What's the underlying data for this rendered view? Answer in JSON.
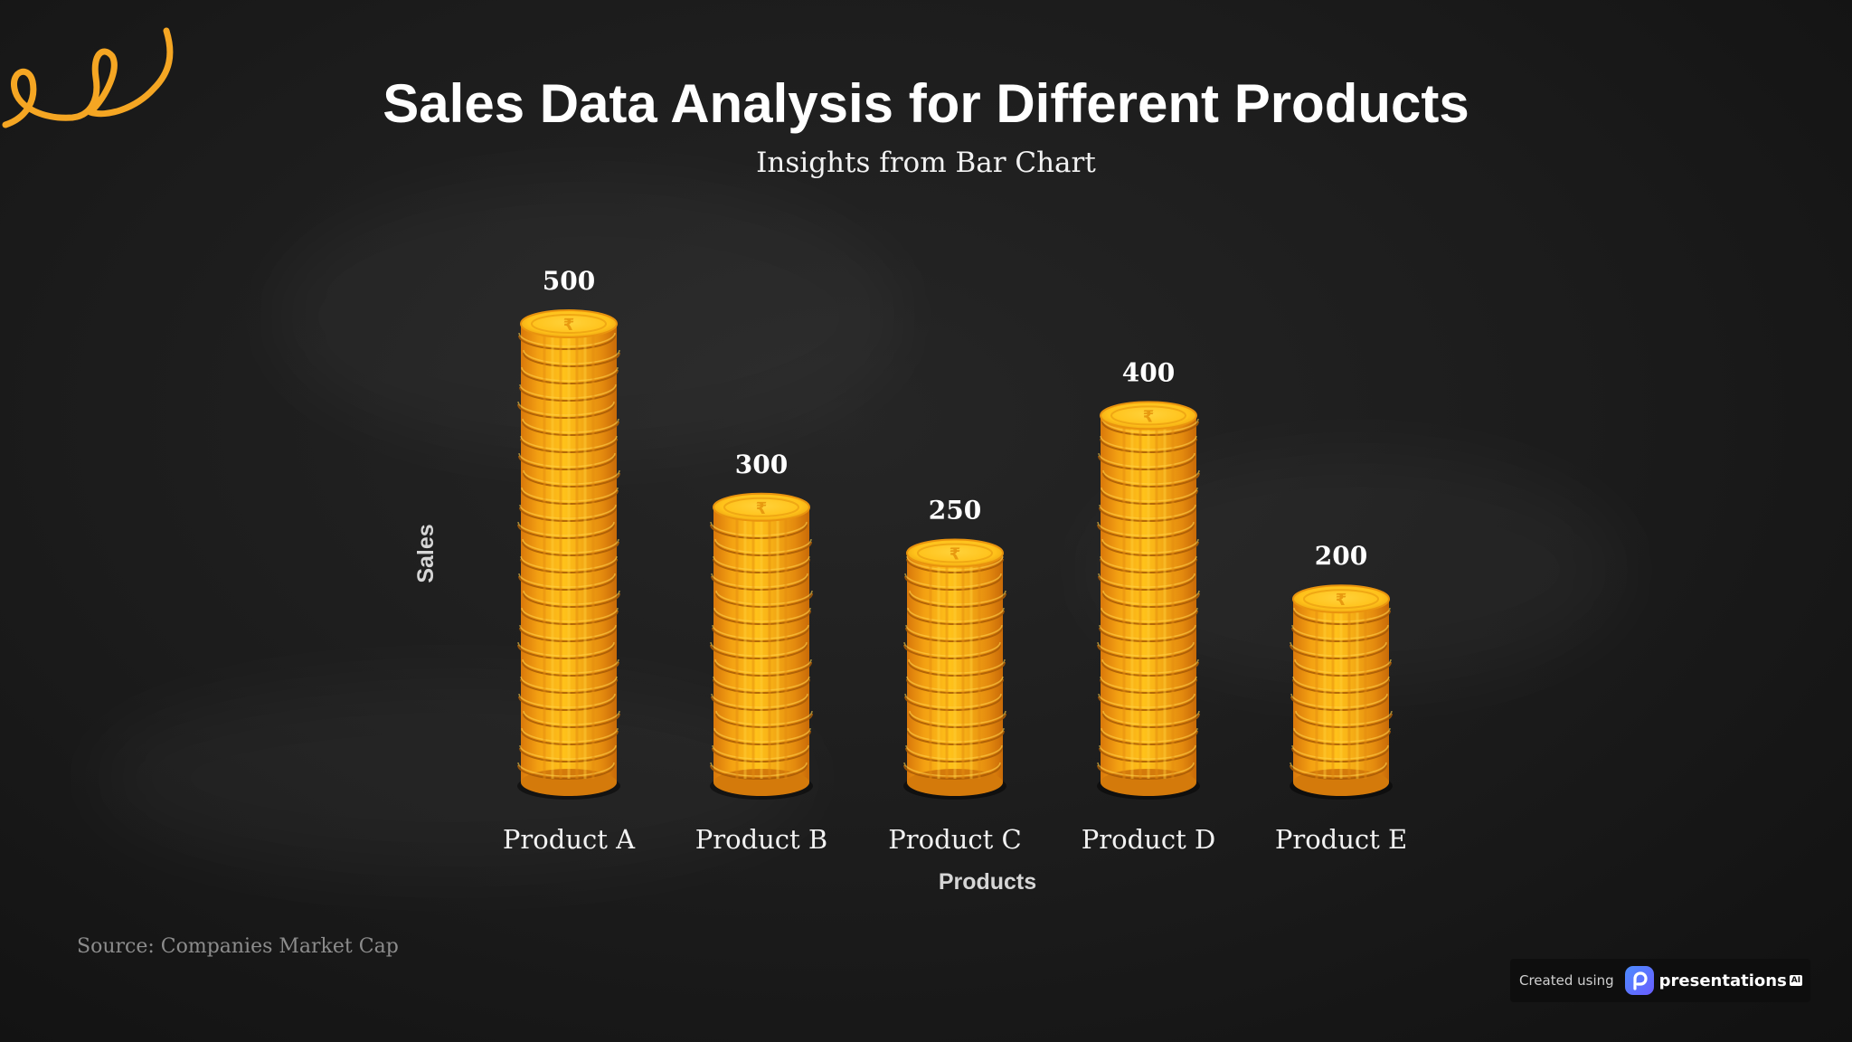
{
  "header": {
    "title": "Sales Data Analysis for Different Products",
    "subtitle": "Insights from Bar Chart"
  },
  "chart_data": {
    "type": "bar",
    "title": "Sales Data Analysis for Different Products",
    "subtitle": "Insights from Bar Chart",
    "xlabel": "Products",
    "ylabel": "Sales",
    "categories": [
      "Product A",
      "Product B",
      "Product C",
      "Product D",
      "Product E"
    ],
    "values": [
      500,
      300,
      250,
      400,
      200
    ],
    "data_labels": [
      "500",
      "300",
      "250",
      "400",
      "200"
    ],
    "ylim": [
      0,
      500
    ],
    "grid": false,
    "legend": "none",
    "bar_style": "stacked-coins",
    "coin_symbol": "₹"
  },
  "footer": {
    "source": "Source: Companies Market Cap",
    "badge_created": "Created using",
    "badge_brand": "presentations",
    "badge_ai": "AI"
  },
  "colors": {
    "background": "#1b1b1b",
    "coin_light": "#ffc21a",
    "coin_mid": "#f3a012",
    "coin_dark": "#d9780b",
    "decoration": "#f5a623",
    "text": "#ffffff"
  },
  "icons": {
    "logo": "presentations-logo-icon",
    "decoration": "squiggle-icon",
    "coin": "rupee-coin-icon"
  }
}
